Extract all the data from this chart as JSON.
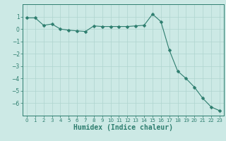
{
  "x": [
    0,
    1,
    2,
    3,
    4,
    5,
    6,
    7,
    8,
    9,
    10,
    11,
    12,
    13,
    14,
    15,
    16,
    17,
    18,
    19,
    20,
    21,
    22,
    23
  ],
  "y": [
    0.9,
    0.9,
    0.3,
    0.4,
    0.0,
    -0.1,
    -0.15,
    -0.2,
    0.25,
    0.2,
    0.2,
    0.2,
    0.2,
    0.25,
    0.3,
    1.2,
    0.6,
    -1.7,
    -3.4,
    -4.0,
    -4.7,
    -5.6,
    -6.3,
    -6.6
  ],
  "line_color": "#2d7d6e",
  "marker": "D",
  "marker_size": 2.5,
  "bg_color": "#cce9e5",
  "grid_color": "#aed4cf",
  "axis_color": "#2d7d6e",
  "tick_label_color": "#2d7d6e",
  "xlabel": "Humidex (Indice chaleur)",
  "xlabel_color": "#2d7d6e",
  "xlabel_fontsize": 7,
  "ylim": [
    -7,
    2
  ],
  "yticks": [
    1,
    0,
    -1,
    -2,
    -3,
    -4,
    -5,
    -6
  ],
  "xlim": [
    -0.5,
    23.5
  ],
  "xticks": [
    0,
    1,
    2,
    3,
    4,
    5,
    6,
    7,
    8,
    9,
    10,
    11,
    12,
    13,
    14,
    15,
    16,
    17,
    18,
    19,
    20,
    21,
    22,
    23
  ]
}
